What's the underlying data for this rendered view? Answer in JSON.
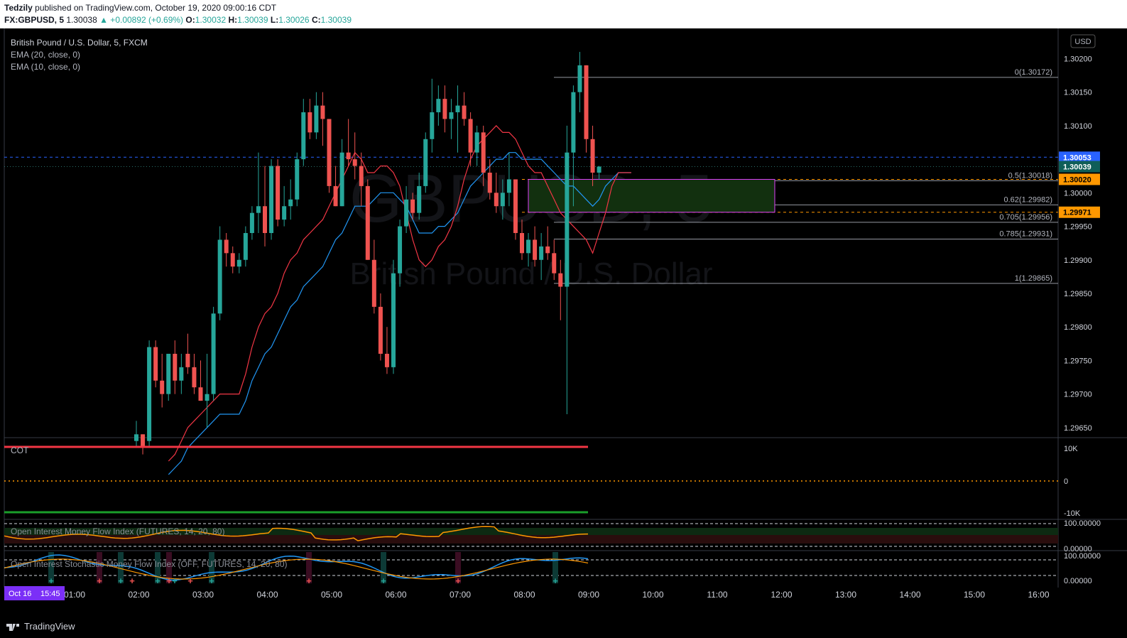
{
  "header": {
    "author": "Tedzily",
    "published": "published on TradingView.com, October 19, 2020 09:00:16 CDT",
    "symbol": "FX:GBPUSD, 5",
    "last": "1.30038",
    "change": "▲ +0.00892 (+0.69%)",
    "open_label": "O:",
    "open": "1.30032",
    "high_label": "H:",
    "high": "1.30039",
    "low_label": "L:",
    "low": "1.30026",
    "close_label": "C:",
    "close": "1.30039"
  },
  "legend": {
    "title": "British Pound / U.S. Dollar, 5, FXCM",
    "ema1": "EMA (20, close, 0)",
    "ema2": "EMA (10, close, 0)"
  },
  "watermark": {
    "symbol": "GBPUSD, 5",
    "name": "British Pound / U.S. Dollar"
  },
  "currency": "USD",
  "price_tags": [
    {
      "value": "1.30053",
      "color": "#2962ff"
    },
    {
      "value": "1.30039",
      "color": "#0f5e58"
    },
    {
      "value": "1.30020",
      "color": "#ff9800"
    },
    {
      "value": "1.29971",
      "color": "#ff9800"
    }
  ],
  "indicators": {
    "cot": {
      "label": "COT",
      "ticks": [
        "10K",
        "0",
        "-10K"
      ]
    },
    "oimfi": {
      "label": "Open Interest Money Flow Index (FUTURES, 14, 20, 80)",
      "ticks": [
        "100.00000",
        "0.00000"
      ]
    },
    "oismfi": {
      "label": "Open Interest Stochastic Money Flow Index (OFF, FUTURES, 14, 20, 80)",
      "ticks": [
        "100.00000",
        "0.00000"
      ]
    }
  },
  "date_badge": {
    "date": "Oct 16",
    "time": "15:45"
  },
  "brand": "TradingView",
  "chart_data": {
    "type": "candlestick",
    "y_axis_ticks": [
      1.302,
      1.3015,
      1.301,
      1.3,
      1.2995,
      1.299,
      1.2985,
      1.298,
      1.2975,
      1.297,
      1.2965
    ],
    "ylim": [
      1.29635,
      1.30245
    ],
    "x_axis_ticks": [
      "01:00",
      "02:00",
      "03:00",
      "04:00",
      "05:00",
      "06:00",
      "07:00",
      "08:00",
      "09:00",
      "10:00",
      "11:00",
      "12:00",
      "13:00",
      "14:00",
      "15:00",
      "16:00"
    ],
    "fibonacci": [
      {
        "label": "0(1.30172)",
        "price": 1.30172
      },
      {
        "label": "0.5(1.30018)",
        "price": 1.30018
      },
      {
        "label": "0.62(1.29982)",
        "price": 1.29982
      },
      {
        "label": "0.705(1.29956)",
        "price": 1.29956
      },
      {
        "label": "0.785(1.29931)",
        "price": 1.29931
      },
      {
        "label": "1(1.29865)",
        "price": 1.29865
      }
    ],
    "zone": {
      "top": 1.3002,
      "bottom": 1.29971
    },
    "candles": [
      [
        1.2963,
        1.2966,
        1.2962,
        1.2964
      ],
      [
        1.2964,
        1.2964,
        1.2961,
        1.2962
      ],
      [
        1.2963,
        1.2978,
        1.2962,
        1.2977
      ],
      [
        1.2977,
        1.2978,
        1.2971,
        1.2972
      ],
      [
        1.2972,
        1.2976,
        1.2968,
        1.297
      ],
      [
        1.297,
        1.2976,
        1.2969,
        1.2976
      ],
      [
        1.2976,
        1.2978,
        1.297,
        1.2972
      ],
      [
        1.2972,
        1.2976,
        1.297,
        1.2974
      ],
      [
        1.2976,
        1.2979,
        1.2973,
        1.2974
      ],
      [
        1.2974,
        1.2976,
        1.297,
        1.2971
      ],
      [
        1.2971,
        1.2975,
        1.2969,
        1.2969
      ],
      [
        1.2969,
        1.2976,
        1.2965,
        1.297
      ],
      [
        1.297,
        1.2983,
        1.2969,
        1.2982
      ],
      [
        1.2982,
        1.2995,
        1.2981,
        1.2993
      ],
      [
        1.2993,
        1.2994,
        1.2989,
        1.2991
      ],
      [
        1.2991,
        1.2992,
        1.2988,
        1.2989
      ],
      [
        1.2989,
        1.2991,
        1.2988,
        1.299
      ],
      [
        1.299,
        1.2995,
        1.2989,
        1.2994
      ],
      [
        1.2994,
        1.2998,
        1.2993,
        1.2997
      ],
      [
        1.2997,
        1.3006,
        1.2994,
        1.2998
      ],
      [
        1.2998,
        1.3004,
        1.2992,
        1.2994
      ],
      [
        1.2994,
        1.3005,
        1.2993,
        1.3004
      ],
      [
        1.3004,
        1.3005,
        1.2995,
        1.2996
      ],
      [
        1.2996,
        1.3001,
        1.2995,
        1.2998
      ],
      [
        1.2998,
        1.3002,
        1.2996,
        1.2999
      ],
      [
        1.2999,
        1.3006,
        1.2998,
        1.3005
      ],
      [
        1.3005,
        1.3014,
        1.3004,
        1.3012
      ],
      [
        1.3012,
        1.3014,
        1.3008,
        1.3009
      ],
      [
        1.3009,
        1.3015,
        1.3008,
        1.3013
      ],
      [
        1.3013,
        1.3015,
        1.3007,
        1.3011
      ],
      [
        1.3011,
        1.3011,
        1.3,
        1.3001
      ],
      [
        1.3001,
        1.3004,
        1.2998,
        1.2998
      ],
      [
        1.2998,
        1.3008,
        1.2998,
        1.3006
      ],
      [
        1.3006,
        1.3011,
        1.3004,
        1.3005
      ],
      [
        1.3005,
        1.3009,
        1.3002,
        1.3004
      ],
      [
        1.3004,
        1.3006,
        1.2998,
        1.3001
      ],
      [
        1.3001,
        1.3002,
        1.299,
        1.299
      ],
      [
        1.299,
        1.2993,
        1.2982,
        1.2983
      ],
      [
        1.2983,
        1.2985,
        1.2975,
        1.2976
      ],
      [
        1.2976,
        1.298,
        1.2973,
        1.2974
      ],
      [
        1.2974,
        1.299,
        1.2973,
        1.2988
      ],
      [
        1.2988,
        1.2996,
        1.2986,
        1.2995
      ],
      [
        1.2995,
        1.3001,
        1.2994,
        1.2999
      ],
      [
        1.2999,
        1.3,
        1.2996,
        1.2997
      ],
      [
        1.2997,
        1.3003,
        1.2996,
        1.3001
      ],
      [
        1.3001,
        1.3009,
        1.3,
        1.3008
      ],
      [
        1.3008,
        1.3017,
        1.3006,
        1.3012
      ],
      [
        1.3012,
        1.3016,
        1.301,
        1.3014
      ],
      [
        1.3014,
        1.3016,
        1.3009,
        1.3011
      ],
      [
        1.3011,
        1.3014,
        1.3008,
        1.3012
      ],
      [
        1.3012,
        1.3016,
        1.3006,
        1.3013
      ],
      [
        1.3013,
        1.3015,
        1.301,
        1.3011
      ],
      [
        1.3011,
        1.3012,
        1.3004,
        1.3006
      ],
      [
        1.3006,
        1.301,
        1.3004,
        1.3009
      ],
      [
        1.3009,
        1.301,
        1.3001,
        1.3003
      ],
      [
        1.3003,
        1.3005,
        1.2999,
        1.3
      ],
      [
        1.3,
        1.3003,
        1.2997,
        1.2998
      ],
      [
        1.2998,
        1.3002,
        1.2996,
        1.3
      ],
      [
        1.3,
        1.3006,
        1.2998,
        1.3002
      ],
      [
        1.3002,
        1.3002,
        1.2993,
        1.2994
      ],
      [
        1.2994,
        1.2996,
        1.299,
        1.2991
      ],
      [
        1.2991,
        1.2994,
        1.2989,
        1.2993
      ],
      [
        1.2993,
        1.2995,
        1.2989,
        1.299
      ],
      [
        1.299,
        1.2994,
        1.2987,
        1.2992
      ],
      [
        1.2992,
        1.2995,
        1.299,
        1.2991
      ],
      [
        1.2991,
        1.2993,
        1.2987,
        1.2988
      ],
      [
        1.2988,
        1.299,
        1.2981,
        1.2986
      ],
      [
        1.2986,
        1.301,
        1.2967,
        1.3006
      ],
      [
        1.3006,
        1.3016,
        1.2998,
        1.3015
      ],
      [
        1.3015,
        1.3021,
        1.3012,
        1.3019
      ],
      [
        1.3019,
        1.3019,
        1.3006,
        1.3008
      ],
      [
        1.3008,
        1.301,
        1.3001,
        1.3003
      ],
      [
        1.3003,
        1.3004,
        1.3002,
        1.30039
      ]
    ],
    "ema20": [
      1.2958,
      1.2959,
      1.296,
      1.2962,
      1.2963,
      1.2964,
      1.2965,
      1.2966,
      1.2967,
      1.2967,
      1.2967,
      1.2967,
      1.2969,
      1.2972,
      1.2974,
      1.2976,
      1.2977,
      1.2979,
      1.2981,
      1.2983,
      1.2984,
      1.2986,
      1.2987,
      1.2988,
      1.2989,
      1.2991,
      1.2993,
      1.2994,
      1.2996,
      1.2998,
      1.2998,
      1.2998,
      1.2999,
      1.3,
      1.3,
      1.3,
      1.2999,
      1.2998,
      1.2996,
      1.2994,
      1.2994,
      1.2994,
      1.2995,
      1.2995,
      1.2996,
      1.2997,
      1.2999,
      1.3001,
      1.3002,
      1.3003,
      1.3004,
      1.3005,
      1.3005,
      1.3006,
      1.3006,
      1.3005,
      1.3005,
      1.3005,
      1.3005,
      1.3004,
      1.3003,
      1.3002,
      1.3001,
      1.3001,
      1.3,
      1.2999,
      1.2998,
      1.2999,
      1.3001,
      1.3002,
      1.3003,
      1.3003,
      1.3003
    ],
    "ema10": [
      1.296,
      1.2961,
      1.2963,
      1.2965,
      1.2966,
      1.2967,
      1.2968,
      1.2969,
      1.297,
      1.297,
      1.297,
      1.297,
      1.2973,
      1.2977,
      1.298,
      1.2982,
      1.2983,
      1.2985,
      1.2988,
      1.299,
      1.2991,
      1.2993,
      1.2994,
      1.2995,
      1.2996,
      1.2998,
      1.3,
      1.3002,
      1.3004,
      1.3006,
      1.3005,
      1.3003,
      1.3003,
      1.3004,
      1.3004,
      1.3003,
      1.3001,
      1.2997,
      1.2993,
      1.299,
      1.2989,
      1.299,
      1.2992,
      1.2993,
      1.2995,
      1.2998,
      1.3002,
      1.3005,
      1.3007,
      1.3008,
      1.3009,
      1.301,
      1.3009,
      1.3009,
      1.3008,
      1.3006,
      1.3004,
      1.3003,
      1.3003,
      1.3001,
      1.2999,
      1.2997,
      1.2996,
      1.2995,
      1.2994,
      1.2993,
      1.2991,
      1.2994,
      1.2997,
      1.3001,
      1.3003,
      1.3003,
      1.3003
    ]
  }
}
